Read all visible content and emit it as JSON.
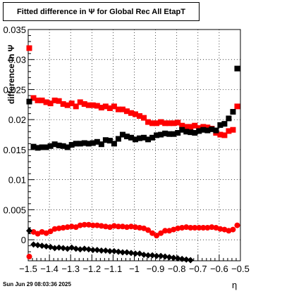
{
  "title": "Fitted difference in  Ψ  for Global Rec All EtapT",
  "footer": "Sun Jun 29 08:03:36 2025",
  "chart_data": {
    "type": "scatter",
    "xlabel": "η",
    "ylabel": "difference in  Ψ",
    "xlim": [
      -1.5,
      -0.5
    ],
    "ylim": [
      -0.0035,
      0.035
    ],
    "grid": true,
    "x_ticks": [
      "−1.5",
      "−1.4",
      "−1.3",
      "−1.2",
      "−1.1",
      "−1",
      "−0.9",
      "−0.8",
      "−0.7",
      "−0.6",
      "−0.5"
    ],
    "x_tick_values": [
      -1.5,
      -1.4,
      -1.3,
      -1.2,
      -1.1,
      -1.0,
      -0.9,
      -0.8,
      -0.7,
      -0.6,
      -0.5
    ],
    "y_ticks": [
      "0",
      "0.005",
      "0.01",
      "0.015",
      "0.02",
      "0.025",
      "0.03",
      "0.035"
    ],
    "y_tick_values": [
      0,
      0.005,
      0.01,
      0.015,
      0.02,
      0.025,
      0.03,
      0.035
    ],
    "series": [
      {
        "marker": "square",
        "color": "#ff0000",
        "x": [
          -1.495,
          -1.475,
          -1.455,
          -1.435,
          -1.415,
          -1.395,
          -1.375,
          -1.355,
          -1.335,
          -1.315,
          -1.295,
          -1.275,
          -1.255,
          -1.235,
          -1.215,
          -1.195,
          -1.175,
          -1.155,
          -1.135,
          -1.115,
          -1.095,
          -1.075,
          -1.055,
          -1.035,
          -1.015,
          -0.995,
          -0.975,
          -0.955,
          -0.935,
          -0.915,
          -0.895,
          -0.875,
          -0.855,
          -0.835,
          -0.815,
          -0.795,
          -0.775,
          -0.755,
          -0.735,
          -0.715,
          -0.695,
          -0.675,
          -0.655,
          -0.635,
          -0.615,
          -0.595,
          -0.575,
          -0.555,
          -0.535,
          -0.515
        ],
        "y": [
          0.0319,
          0.0236,
          0.0232,
          0.0232,
          0.0229,
          0.0227,
          0.0232,
          0.0231,
          0.0226,
          0.0224,
          0.0227,
          0.0222,
          0.0229,
          0.0226,
          0.0224,
          0.0224,
          0.0223,
          0.022,
          0.0222,
          0.0219,
          0.0222,
          0.0217,
          0.0217,
          0.0214,
          0.0211,
          0.0209,
          0.0206,
          0.0203,
          0.0196,
          0.0194,
          0.0194,
          0.0196,
          0.0194,
          0.0194,
          0.0194,
          0.0195,
          0.019,
          0.0188,
          0.0188,
          0.019,
          0.0186,
          0.0188,
          0.0187,
          0.0185,
          0.0178,
          0.0175,
          0.0174,
          0.0181,
          0.0183,
          0.0222
        ]
      },
      {
        "marker": "square",
        "color": "#000000",
        "x": [
          -1.495,
          -1.475,
          -1.455,
          -1.435,
          -1.415,
          -1.395,
          -1.375,
          -1.355,
          -1.335,
          -1.315,
          -1.295,
          -1.275,
          -1.255,
          -1.235,
          -1.215,
          -1.195,
          -1.175,
          -1.155,
          -1.135,
          -1.115,
          -1.095,
          -1.075,
          -1.055,
          -1.035,
          -1.015,
          -0.995,
          -0.975,
          -0.955,
          -0.935,
          -0.915,
          -0.895,
          -0.875,
          -0.855,
          -0.835,
          -0.815,
          -0.795,
          -0.775,
          -0.755,
          -0.735,
          -0.715,
          -0.695,
          -0.675,
          -0.655,
          -0.635,
          -0.615,
          -0.595,
          -0.575,
          -0.555,
          -0.535,
          -0.515
        ],
        "y": [
          0.023,
          0.0155,
          0.0153,
          0.0154,
          0.0154,
          0.0156,
          0.0159,
          0.0157,
          0.0156,
          0.0154,
          0.0158,
          0.016,
          0.016,
          0.0161,
          0.016,
          0.0161,
          0.0163,
          0.0159,
          0.0166,
          0.0165,
          0.016,
          0.0168,
          0.0175,
          0.0172,
          0.017,
          0.0167,
          0.0169,
          0.017,
          0.0167,
          0.017,
          0.0174,
          0.0175,
          0.0177,
          0.0176,
          0.0176,
          0.0178,
          0.0183,
          0.018,
          0.0179,
          0.0178,
          0.0181,
          0.0183,
          0.0182,
          0.0184,
          0.0182,
          0.0191,
          0.0193,
          0.0202,
          0.0213,
          0.0285
        ]
      },
      {
        "marker": "circle",
        "color": "#ff0000",
        "x": [
          -1.495,
          -1.475,
          -1.455,
          -1.435,
          -1.415,
          -1.395,
          -1.375,
          -1.355,
          -1.335,
          -1.315,
          -1.295,
          -1.275,
          -1.255,
          -1.235,
          -1.215,
          -1.195,
          -1.175,
          -1.155,
          -1.135,
          -1.115,
          -1.095,
          -1.075,
          -1.055,
          -1.035,
          -1.015,
          -0.995,
          -0.975,
          -0.955,
          -0.935,
          -0.915,
          -0.895,
          -0.875,
          -0.855,
          -0.835,
          -0.815,
          -0.795,
          -0.775,
          -0.755,
          -0.735,
          -0.715,
          -0.695,
          -0.675,
          -0.655,
          -0.635,
          -0.615,
          -0.595,
          -0.575,
          -0.555,
          -0.535,
          -0.515
        ],
        "y": [
          -0.0028,
          0.0013,
          0.001,
          0.0013,
          0.0011,
          0.0014,
          0.0018,
          0.0019,
          0.002,
          0.0021,
          0.0022,
          0.0021,
          0.0024,
          0.0025,
          0.0025,
          0.0024,
          0.0024,
          0.0023,
          0.0022,
          0.0021,
          0.0023,
          0.0022,
          0.0022,
          0.0021,
          0.0022,
          0.0021,
          0.002,
          0.0019,
          0.0016,
          0.0011,
          0.0007,
          0.0011,
          0.0015,
          0.0015,
          0.0017,
          0.0019,
          0.002,
          0.0021,
          0.002,
          0.002,
          0.002,
          0.002,
          0.002,
          0.0021,
          0.002,
          0.0018,
          0.0017,
          0.0015,
          0.0017,
          0.0024
        ]
      },
      {
        "marker": "diamond",
        "color": "#000000",
        "x": [
          -1.495,
          -1.475,
          -1.455,
          -1.435,
          -1.415,
          -1.395,
          -1.375,
          -1.355,
          -1.335,
          -1.315,
          -1.295,
          -1.275,
          -1.255,
          -1.235,
          -1.215,
          -1.195,
          -1.175,
          -1.155,
          -1.135,
          -1.115,
          -1.095,
          -1.075,
          -1.055,
          -1.035,
          -1.015,
          -0.995,
          -0.975,
          -0.955,
          -0.935,
          -0.915,
          -0.895,
          -0.875,
          -0.855,
          -0.835,
          -0.815,
          -0.795,
          -0.775,
          -0.755,
          -0.735
        ],
        "y": [
          0.0015,
          -0.0008,
          -0.0009,
          -0.001,
          -0.0011,
          -0.0012,
          -0.0014,
          -0.0013,
          -0.0014,
          -0.0015,
          -0.0013,
          -0.0015,
          -0.0016,
          -0.0015,
          -0.0016,
          -0.0017,
          -0.0017,
          -0.0018,
          -0.0018,
          -0.0019,
          -0.0019,
          -0.002,
          -0.0021,
          -0.0021,
          -0.0022,
          -0.0023,
          -0.0023,
          -0.0025,
          -0.0026,
          -0.0026,
          -0.0027,
          -0.0027,
          -0.0028,
          -0.0029,
          -0.003,
          -0.0031,
          -0.0032,
          -0.0033,
          -0.0034
        ]
      }
    ]
  }
}
